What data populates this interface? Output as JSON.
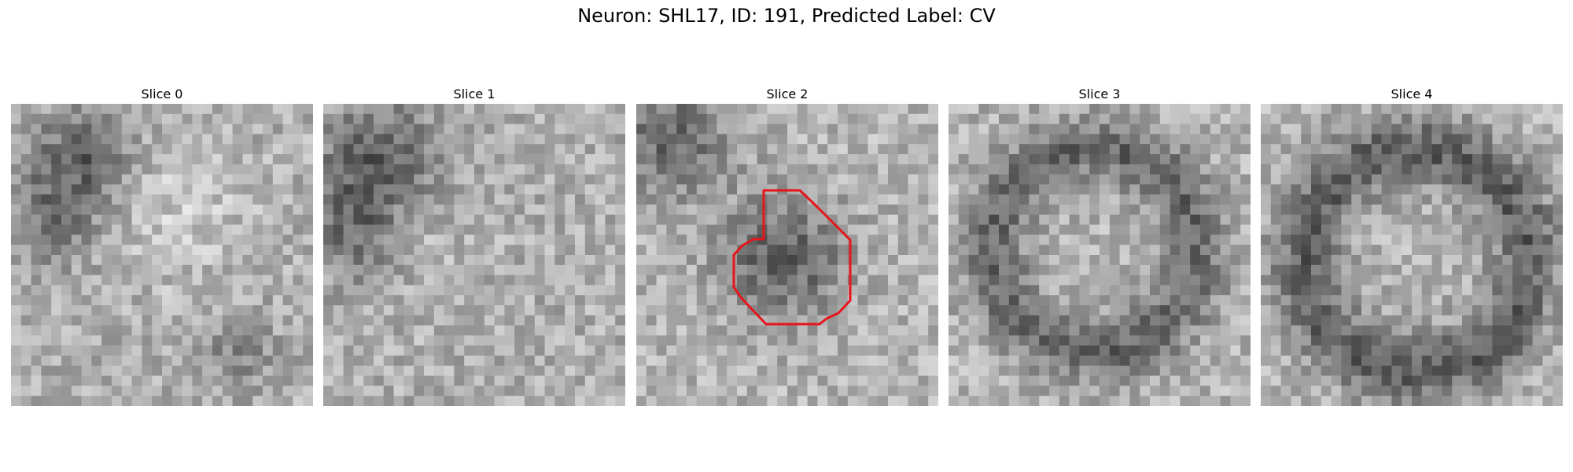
{
  "figure": {
    "title": "Neuron: SHL17, ID: 191, Predicted Label: CV"
  },
  "panels": [
    {
      "title": "Slice 0"
    },
    {
      "title": "Slice 1"
    },
    {
      "title": "Slice 2"
    },
    {
      "title": "Slice 3"
    },
    {
      "title": "Slice 4"
    }
  ],
  "colors": {
    "background": "#ffffff",
    "outline": "#e8141c",
    "colormap": "grayscale"
  }
}
